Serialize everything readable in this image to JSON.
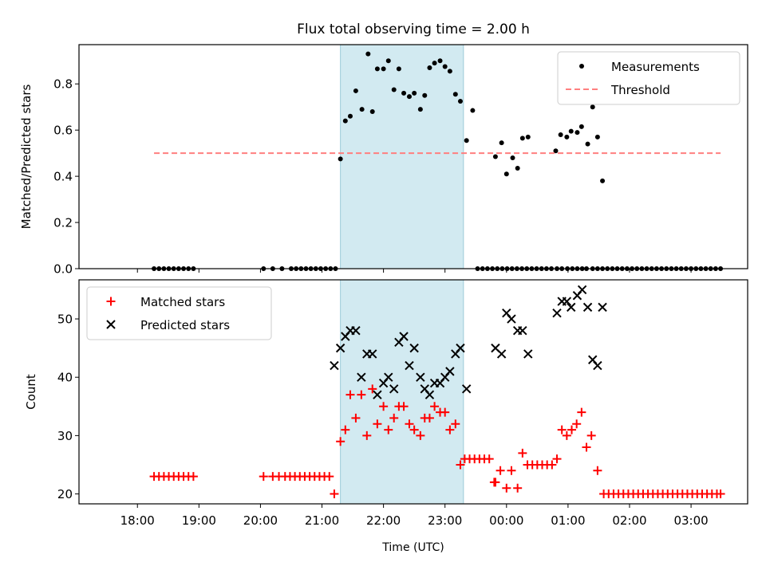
{
  "figure": {
    "title": "Flux total observing time = 2.00 h",
    "xlabel": "Time (UTC)"
  },
  "chart_data": [
    {
      "type": "scatter",
      "ylabel": "Matched/Predicted stars",
      "ylim": [
        0,
        0.97
      ],
      "yticks": [
        0.0,
        0.2,
        0.4,
        0.6,
        0.8
      ],
      "ytick_labels": [
        "0.0",
        "0.2",
        "0.4",
        "0.6",
        "0.8"
      ],
      "x_unit": "hours since 18:00 UTC",
      "xlim": [
        -0.95,
        9.92
      ],
      "xticks": [
        0,
        1,
        2,
        3,
        4,
        5,
        6,
        7,
        8,
        9
      ],
      "xtick_labels": [
        "18:00",
        "19:00",
        "20:00",
        "21:00",
        "22:00",
        "23:00",
        "00:00",
        "01:00",
        "02:00",
        "03:00"
      ],
      "shaded_region": {
        "x": [
          3.3,
          5.3
        ],
        "color": "#add8e6"
      },
      "legend": {
        "position": "upper right"
      },
      "series": [
        {
          "name": "Measurements",
          "kind": "points",
          "color": "#000000",
          "x": [
            0.27,
            0.35,
            0.43,
            0.51,
            0.59,
            0.67,
            0.75,
            0.83,
            0.91,
            2.05,
            2.2,
            2.35,
            2.5,
            2.58,
            2.66,
            2.74,
            2.82,
            2.9,
            2.98,
            3.06,
            3.14,
            3.22,
            3.3,
            3.38,
            3.46,
            3.55,
            3.65,
            3.75,
            3.82,
            3.9,
            4.0,
            4.08,
            4.17,
            4.25,
            4.33,
            4.42,
            4.5,
            4.6,
            4.67,
            4.75,
            4.83,
            4.92,
            5.0,
            5.08,
            5.17,
            5.25,
            5.35,
            5.45,
            5.53,
            5.61,
            5.69,
            5.77,
            5.85,
            5.93,
            6.01,
            6.09,
            6.17,
            6.25,
            6.33,
            6.41,
            6.49,
            6.57,
            6.65,
            6.73,
            6.82,
            6.9,
            6.99,
            7.07,
            7.15,
            7.23,
            7.3,
            7.4,
            7.48,
            7.56,
            7.64,
            7.72,
            7.8,
            7.88,
            7.96,
            8.04,
            8.12,
            8.2,
            8.28,
            8.36,
            8.44,
            8.52,
            8.6,
            8.68,
            8.76,
            8.84,
            8.92,
            9.0,
            9.08,
            9.16,
            9.24,
            9.32,
            9.4,
            9.48
          ],
          "y": [
            0,
            0,
            0,
            0,
            0,
            0,
            0,
            0,
            0,
            0,
            0,
            0,
            0,
            0,
            0,
            0,
            0,
            0,
            0,
            0,
            0,
            0,
            0.475,
            0.64,
            0.66,
            0.77,
            0.69,
            0.93,
            0.68,
            0.865,
            0.865,
            0.9,
            0.775,
            0.865,
            0.76,
            0.745,
            0.76,
            0.69,
            0.75,
            0.87,
            0.89,
            0.9,
            0.875,
            0.855,
            0.755,
            0.725,
            0.555,
            0.685,
            0,
            0,
            0,
            0,
            0,
            0,
            0,
            0,
            0,
            0,
            0,
            0,
            0,
            0,
            0,
            0,
            0,
            0,
            0,
            0,
            0,
            0,
            0,
            0,
            0,
            0,
            0,
            0,
            0,
            0,
            0,
            0,
            0,
            0,
            0,
            0,
            0,
            0,
            0,
            0,
            0,
            0,
            0,
            0,
            0,
            0,
            0,
            0,
            0,
            0
          ],
          "x2": [
            5.82,
            5.92,
            6.0,
            6.1,
            6.18,
            6.26,
            6.35,
            6.8,
            6.88,
            6.98,
            7.05,
            7.15,
            7.22,
            7.32,
            7.4,
            7.48,
            7.56
          ],
          "y2": [
            0.485,
            0.545,
            0.41,
            0.48,
            0.435,
            0.565,
            0.57,
            0.51,
            0.58,
            0.57,
            0.595,
            0.59,
            0.615,
            0.54,
            0.7,
            0.57,
            0.38
          ]
        },
        {
          "name": "Threshold",
          "kind": "dashed-line",
          "color": "#ff7f7f",
          "x": [
            0.27,
            9.48
          ],
          "y": [
            0.5,
            0.5
          ]
        }
      ]
    },
    {
      "type": "scatter",
      "ylabel": "Count",
      "ylim": [
        18.3,
        56.7
      ],
      "yticks": [
        20,
        30,
        40,
        50
      ],
      "ytick_labels": [
        "20",
        "30",
        "40",
        "50"
      ],
      "x_unit": "hours since 18:00 UTC",
      "xlim": [
        -0.95,
        9.92
      ],
      "xticks": [
        0,
        1,
        2,
        3,
        4,
        5,
        6,
        7,
        8,
        9
      ],
      "xtick_labels": [
        "18:00",
        "19:00",
        "20:00",
        "21:00",
        "22:00",
        "23:00",
        "00:00",
        "01:00",
        "02:00",
        "03:00"
      ],
      "shaded_region": {
        "x": [
          3.3,
          5.3
        ],
        "color": "#add8e6"
      },
      "legend": {
        "position": "upper left"
      },
      "series": [
        {
          "name": "Matched stars",
          "marker": "plus",
          "color": "#ff0000",
          "x": [
            0.27,
            0.35,
            0.43,
            0.51,
            0.59,
            0.67,
            0.75,
            0.83,
            0.91,
            2.05,
            2.2,
            2.3,
            2.4,
            2.48,
            2.56,
            2.64,
            2.72,
            2.8,
            2.88,
            2.96,
            3.04,
            3.12,
            3.2,
            3.3,
            3.38,
            3.46,
            3.55,
            3.64,
            3.73,
            3.82,
            3.9,
            4.0,
            4.08,
            4.17,
            4.25,
            4.33,
            4.42,
            4.5,
            4.6,
            4.67,
            4.75,
            4.83,
            4.92,
            5.0,
            5.08,
            5.17,
            5.25,
            5.32,
            5.4,
            5.48,
            5.56,
            5.64,
            5.72,
            5.8,
            5.82,
            5.9,
            6.0,
            6.08,
            6.18,
            6.26,
            6.34,
            6.42,
            6.5,
            6.58,
            6.66,
            6.74,
            6.82,
            6.9,
            6.98,
            7.06,
            7.14,
            7.22,
            7.3,
            7.38,
            7.48,
            7.58,
            7.66,
            7.74,
            7.82,
            7.9,
            7.98,
            8.06,
            8.14,
            8.22,
            8.3,
            8.38,
            8.46,
            8.54,
            8.62,
            8.7,
            8.78,
            8.86,
            8.94,
            9.02,
            9.1,
            9.18,
            9.26,
            9.34,
            9.42,
            9.48
          ],
          "y": [
            23,
            23,
            23,
            23,
            23,
            23,
            23,
            23,
            23,
            23,
            23,
            23,
            23,
            23,
            23,
            23,
            23,
            23,
            23,
            23,
            23,
            23,
            20,
            29,
            31,
            37,
            33,
            37,
            30,
            38,
            32,
            35,
            31,
            33,
            35,
            35,
            32,
            31,
            30,
            33,
            33,
            35,
            34,
            34,
            31,
            32,
            25,
            26,
            26,
            26,
            26,
            26,
            26,
            22,
            22,
            24,
            21,
            24,
            21,
            27,
            25,
            25,
            25,
            25,
            25,
            25,
            26,
            31,
            30,
            31,
            32,
            34,
            28,
            30,
            24,
            20,
            20,
            20,
            20,
            20,
            20,
            20,
            20,
            20,
            20,
            20,
            20,
            20,
            20,
            20,
            20,
            20,
            20,
            20,
            20,
            20,
            20,
            20,
            20,
            20
          ]
        },
        {
          "name": "Predicted stars",
          "marker": "x",
          "color": "#000000",
          "x": [
            3.2,
            3.3,
            3.38,
            3.46,
            3.55,
            3.64,
            3.73,
            3.82,
            3.9,
            4.0,
            4.08,
            4.17,
            4.25,
            4.33,
            4.42,
            4.5,
            4.6,
            4.67,
            4.75,
            4.83,
            4.92,
            5.0,
            5.08,
            5.17,
            5.25,
            5.35,
            5.82,
            5.92,
            6.0,
            6.08,
            6.18,
            6.26,
            6.35,
            6.82,
            6.9,
            6.98,
            7.05,
            7.15,
            7.23,
            7.32,
            7.4,
            7.48,
            7.56
          ],
          "y": [
            42,
            45,
            47,
            48,
            48,
            40,
            44,
            44,
            37,
            39,
            40,
            38,
            46,
            47,
            42,
            45,
            40,
            38,
            37,
            39,
            39,
            40,
            41,
            44,
            45,
            38,
            45,
            44,
            51,
            50,
            48,
            48,
            44,
            51,
            53,
            53,
            52,
            54,
            55,
            52,
            43,
            42,
            52
          ]
        }
      ]
    }
  ]
}
